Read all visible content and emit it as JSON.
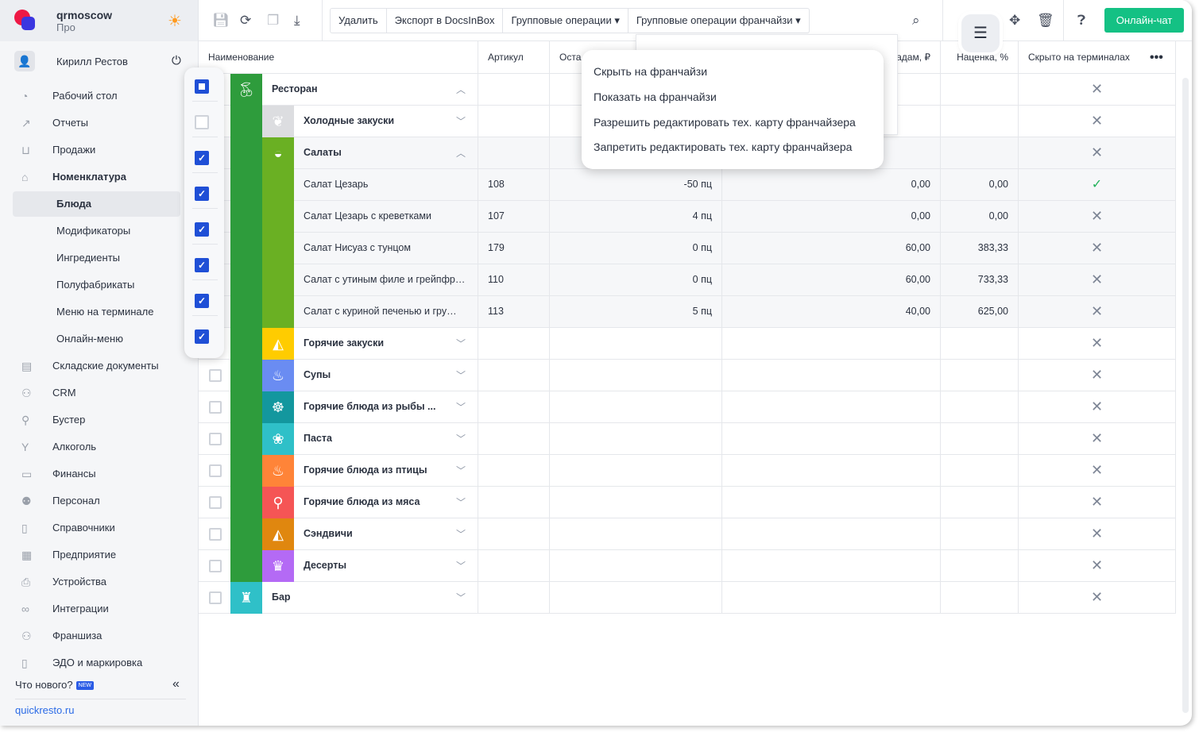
{
  "brand": {
    "name": "qrmoscow",
    "plan": "Про",
    "theme_icon": "sun-icon"
  },
  "user": {
    "name": "Кирилл Рестов"
  },
  "sidebar": {
    "items": [
      {
        "label": "Рабочий стол",
        "icon": "dashboard-icon",
        "type": "top"
      },
      {
        "label": "Отчеты",
        "icon": "chart-icon",
        "type": "top"
      },
      {
        "label": "Продажи",
        "icon": "basket-icon",
        "type": "top"
      },
      {
        "label": "Номенклатура",
        "icon": "tag-icon",
        "type": "bold"
      },
      {
        "label": "Блюда",
        "type": "active"
      },
      {
        "label": "Модификаторы",
        "type": "sub"
      },
      {
        "label": "Ингредиенты",
        "type": "sub"
      },
      {
        "label": "Полуфабрикаты",
        "type": "sub"
      },
      {
        "label": "Меню на терминале",
        "type": "sub"
      },
      {
        "label": "Онлайн-меню",
        "type": "sub"
      },
      {
        "label": "Складские документы",
        "icon": "warehouse-icon",
        "type": "top"
      },
      {
        "label": "CRM",
        "icon": "crm-icon",
        "type": "top"
      },
      {
        "label": "Бустер",
        "icon": "booster-icon",
        "type": "top"
      },
      {
        "label": "Алкоголь",
        "icon": "glass-icon",
        "type": "top"
      },
      {
        "label": "Финансы",
        "icon": "wallet-icon",
        "type": "top"
      },
      {
        "label": "Персонал",
        "icon": "staff-icon",
        "type": "top"
      },
      {
        "label": "Справочники",
        "icon": "book-icon",
        "type": "top"
      },
      {
        "label": "Предприятие",
        "icon": "store-icon",
        "type": "top"
      },
      {
        "label": "Устройства",
        "icon": "printer-icon",
        "type": "top"
      },
      {
        "label": "Интеграции",
        "icon": "infinity-icon",
        "type": "top"
      },
      {
        "label": "Франшиза",
        "icon": "franchise-icon",
        "type": "top"
      },
      {
        "label": "ЭДО и маркировка",
        "icon": "document-icon",
        "type": "top"
      }
    ],
    "whats_new": "Что нового?",
    "new_badge": "NEW",
    "site_link": "quickresto.ru"
  },
  "toolbar": {
    "buttons": [
      "Удалить",
      "Экспорт в DocsInBox",
      "Групповые операции ▾",
      "Групповые операции франчайзи ▾"
    ],
    "chat": "Онлайн-чат"
  },
  "franchise_menu": {
    "items": [
      "Скрыть на франчайзи",
      "Показать на франчайзи",
      "Разрешить редактировать тех. карту франчайзера",
      "Запретить редактировать тех. карту франчайзера"
    ]
  },
  "table": {
    "headers": [
      "Наименование",
      "Артикул",
      "Оста",
      "адам, ₽",
      "Наценка, %",
      "Скрыто на терминалах"
    ],
    "rows": [
      {
        "name": "Ресторан",
        "level": 0,
        "color": "#2e9c3c",
        "icon": "cherry-icon",
        "expanded": true,
        "hidden": false
      },
      {
        "name": "Холодные закуски",
        "level": 1,
        "color": "#dcdde0",
        "icon": "cold-snacks-icon",
        "expanded": false,
        "hidden": false
      },
      {
        "name": "Салаты",
        "level": 1,
        "color": "#6ab023",
        "icon": "salad-bowl-icon",
        "expanded": true,
        "hidden": false
      },
      {
        "name": "Салат Цезарь",
        "level": 2,
        "sku": "108",
        "stock": "-50 пц",
        "price": "0,00",
        "markup": "0,00",
        "hidden": true
      },
      {
        "name": "Салат Цезарь с креветками",
        "level": 2,
        "sku": "107",
        "stock": "4 пц",
        "price": "0,00",
        "markup": "0,00",
        "hidden": false
      },
      {
        "name": "Салат Нисуаз с тунцом",
        "level": 2,
        "sku": "179",
        "stock": "0 пц",
        "price": "60,00",
        "markup": "383,33",
        "hidden": false
      },
      {
        "name": "Салат с утиным филе и грейпфр…",
        "level": 2,
        "sku": "110",
        "stock": "0 пц",
        "price": "60,00",
        "markup": "733,33",
        "hidden": false
      },
      {
        "name": "Салат с куриной печенью и гру…",
        "level": 2,
        "sku": "113",
        "stock": "5 пц",
        "price": "40,00",
        "markup": "625,00",
        "hidden": false
      },
      {
        "name": "Горячие закуски",
        "level": 1,
        "color": "#ffcc00",
        "icon": "sandwich-icon",
        "expanded": false,
        "hidden": false
      },
      {
        "name": "Супы",
        "level": 1,
        "color": "#6a8cf2",
        "icon": "soup-icon",
        "expanded": false,
        "hidden": false
      },
      {
        "name": "Горячие блюда из рыбы ...",
        "level": 1,
        "color": "#13979e",
        "icon": "octopus-icon",
        "expanded": false,
        "hidden": false
      },
      {
        "name": "Паста",
        "level": 1,
        "color": "#2fc0c8",
        "icon": "shell-icon",
        "expanded": false,
        "hidden": false
      },
      {
        "name": "Горячие блюда из птицы",
        "level": 1,
        "color": "#ff8438",
        "icon": "chicken-icon",
        "expanded": false,
        "hidden": false
      },
      {
        "name": "Горячие блюда из мяса",
        "level": 1,
        "color": "#f55555",
        "icon": "meat-icon",
        "expanded": false,
        "hidden": false
      },
      {
        "name": "Сэндвичи",
        "level": 1,
        "color": "#e0870f",
        "icon": "sandwich-icon",
        "expanded": false,
        "hidden": false
      },
      {
        "name": "Десерты",
        "level": 1,
        "color": "#b46af5",
        "icon": "cupcake-icon",
        "expanded": false,
        "hidden": false
      },
      {
        "name": "Бар",
        "level": 0,
        "color": "#2fc0c8",
        "icon": "drink-icon",
        "expanded": false,
        "hidden": false
      }
    ],
    "checked": [
      "indeterminate",
      "unchecked",
      "checked",
      "checked",
      "checked",
      "checked",
      "checked",
      "checked"
    ]
  }
}
